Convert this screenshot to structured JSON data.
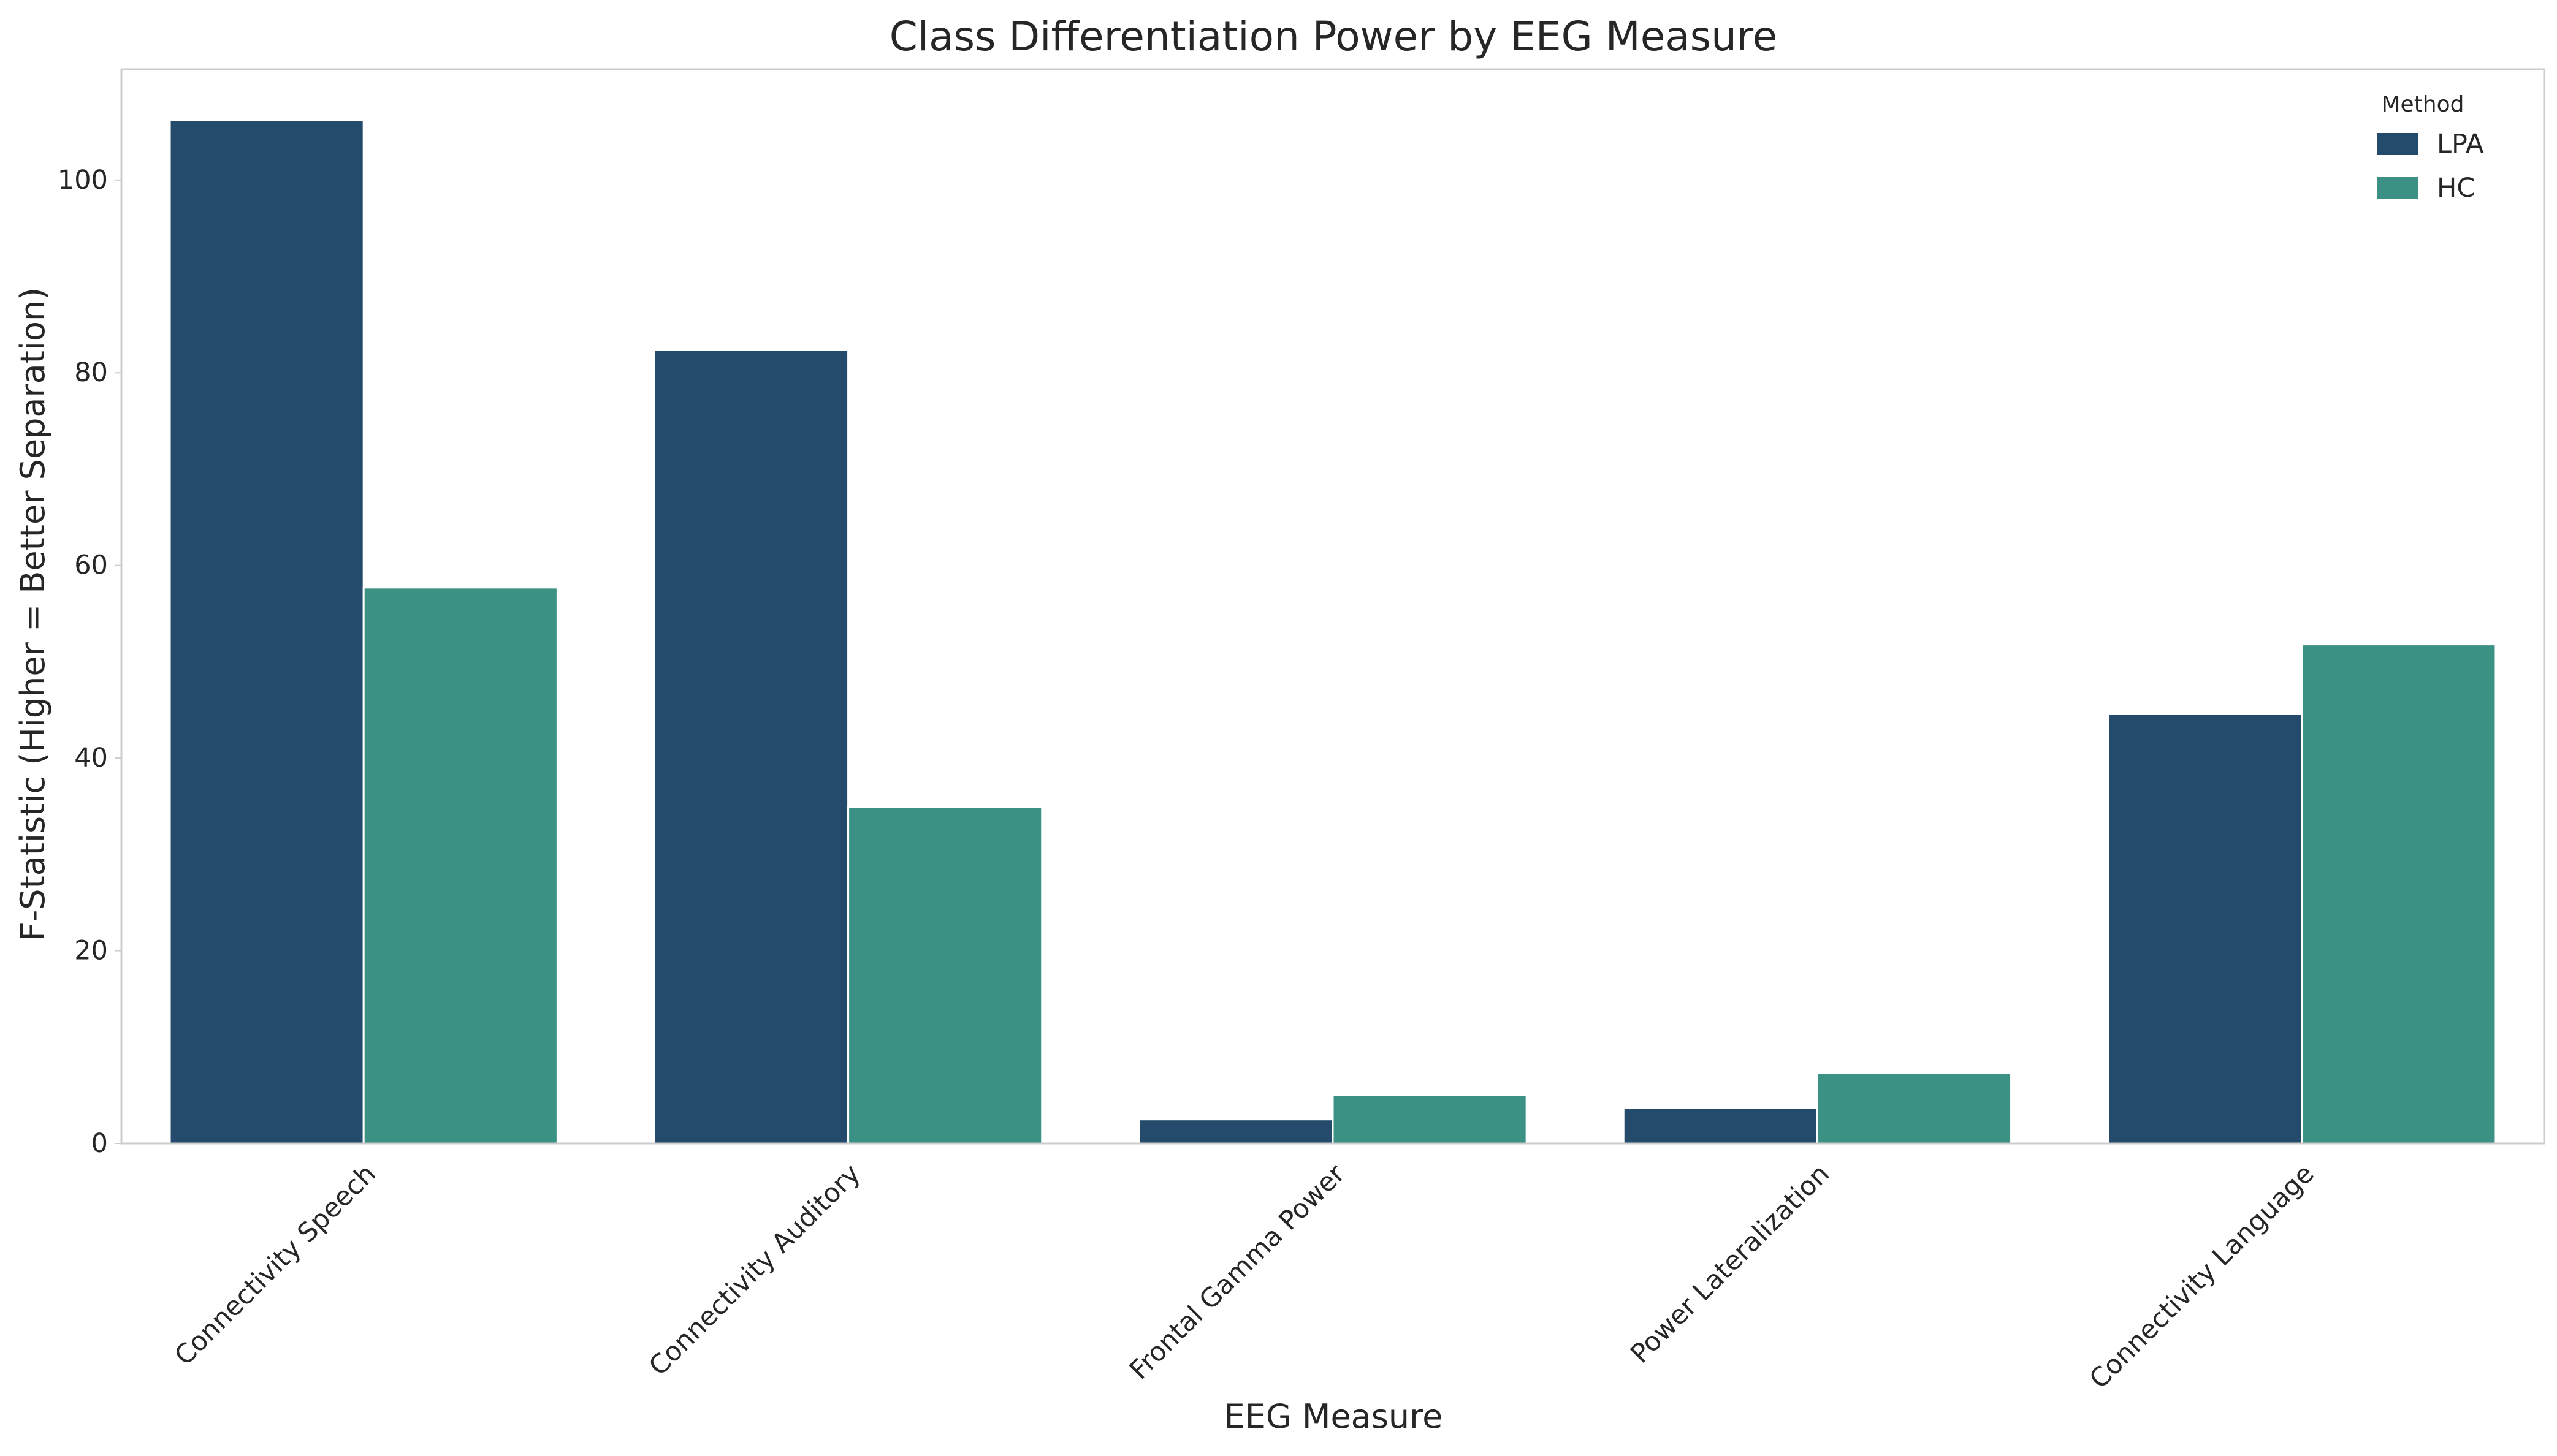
{
  "chart_data": {
    "type": "bar",
    "title": "Class Differentiation Power by EEG Measure",
    "xlabel": "EEG Measure",
    "ylabel": "F-Statistic (Higher = Better Separation)",
    "categories": [
      "Connectivity Speech",
      "Connectivity Auditory",
      "Frontal Gamma Power",
      "Power Lateralization",
      "Connectivity Language"
    ],
    "series": [
      {
        "name": "LPA",
        "color": "#244b6c",
        "values": [
          106.2,
          82.4,
          2.5,
          3.7,
          44.6
        ]
      },
      {
        "name": "HC",
        "color": "#3a9184",
        "values": [
          57.7,
          34.9,
          5.0,
          7.3,
          51.8
        ]
      }
    ],
    "ylim": [
      0,
      111.5
    ],
    "yticks": [
      0,
      20,
      40,
      60,
      80,
      100
    ],
    "grid": false,
    "legend": {
      "title": "Method",
      "placement": "top-right"
    },
    "colors": {
      "axis_frame": "#cccccc",
      "bar_edge": "#ffffff"
    }
  }
}
